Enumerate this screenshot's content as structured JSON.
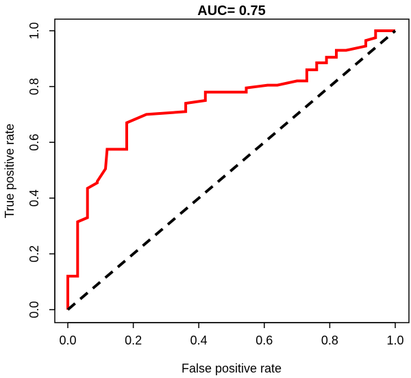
{
  "chart_data": {
    "type": "line",
    "title": "AUC= 0.75",
    "xlabel": "False positive rate",
    "ylabel": "True positive rate",
    "xlim": [
      0,
      1
    ],
    "ylim": [
      0,
      1
    ],
    "x_ticks": [
      "0.0",
      "0.2",
      "0.4",
      "0.6",
      "0.8",
      "1.0"
    ],
    "y_ticks": [
      "0.0",
      "0.2",
      "0.4",
      "0.6",
      "0.8",
      "1.0"
    ],
    "grid": false,
    "series": [
      {
        "color": "#ff0000",
        "style": "solid",
        "x": [
          0.0,
          0.0,
          0.03,
          0.03,
          0.06,
          0.06,
          0.09,
          0.09,
          0.115,
          0.12,
          0.12,
          0.18,
          0.18,
          0.24,
          0.36,
          0.36,
          0.42,
          0.42,
          0.48,
          0.545,
          0.545,
          0.61,
          0.64,
          0.7,
          0.73,
          0.73,
          0.76,
          0.76,
          0.79,
          0.79,
          0.82,
          0.82,
          0.85,
          0.91,
          0.91,
          0.94,
          0.94,
          1.0
        ],
        "y": [
          0.0,
          0.12,
          0.12,
          0.315,
          0.33,
          0.435,
          0.455,
          0.46,
          0.505,
          0.575,
          0.575,
          0.575,
          0.67,
          0.7,
          0.71,
          0.74,
          0.75,
          0.78,
          0.78,
          0.78,
          0.795,
          0.805,
          0.805,
          0.82,
          0.82,
          0.86,
          0.86,
          0.885,
          0.885,
          0.905,
          0.905,
          0.93,
          0.93,
          0.945,
          0.965,
          0.975,
          1.0,
          1.0
        ]
      },
      {
        "color": "#000000",
        "style": "dashed",
        "x": [
          0,
          1
        ],
        "y": [
          0,
          1
        ]
      }
    ]
  }
}
